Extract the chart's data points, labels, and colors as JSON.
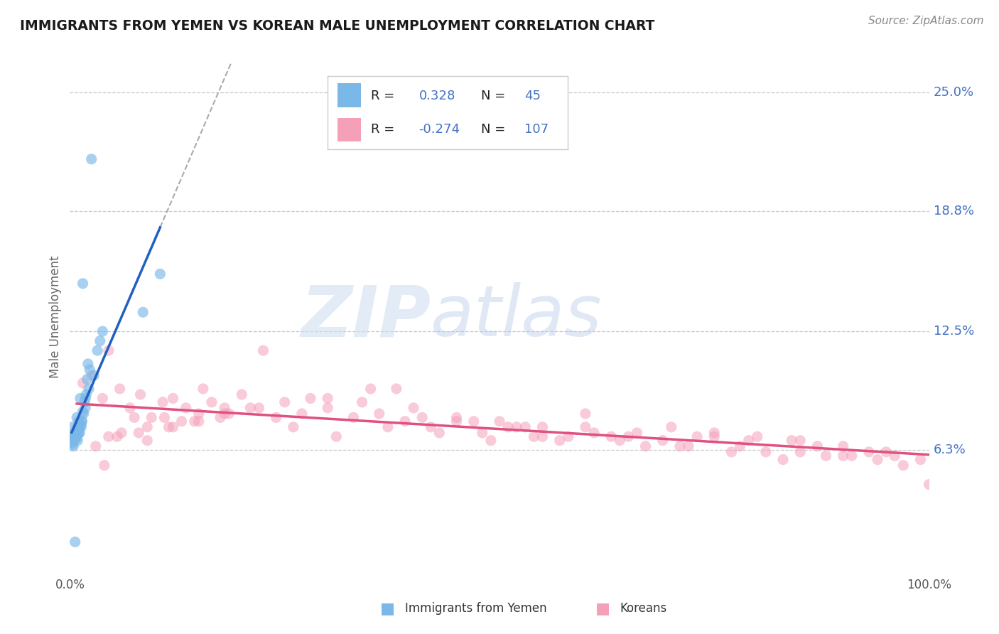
{
  "title": "IMMIGRANTS FROM YEMEN VS KOREAN MALE UNEMPLOYMENT CORRELATION CHART",
  "source": "Source: ZipAtlas.com",
  "ylabel": "Male Unemployment",
  "ytick_labels": [
    "6.3%",
    "12.5%",
    "18.8%",
    "25.0%"
  ],
  "ytick_values": [
    6.3,
    12.5,
    18.8,
    25.0
  ],
  "xmin": 0.0,
  "xmax": 100.0,
  "ymin": 0.0,
  "ymax": 26.5,
  "color_blue": "#7ab8e8",
  "color_pink": "#f5a0b8",
  "color_blue_line": "#2060c0",
  "color_pink_line": "#e05080",
  "color_blue_text": "#4472c4",
  "color_gray_text": "#888888",
  "watermark_zip": "ZIP",
  "watermark_atlas": "atlas",
  "blue_x": [
    1.5,
    2.5,
    8.5,
    0.3,
    0.5,
    0.8,
    1.0,
    1.2,
    1.8,
    2.0,
    0.6,
    0.9,
    1.1,
    1.3,
    1.6,
    0.4,
    1.4,
    0.7,
    2.2,
    0.5,
    1.7,
    2.8,
    3.2,
    0.2,
    1.9,
    0.3,
    3.5,
    0.6,
    0.4,
    0.8,
    1.0,
    1.5,
    0.9,
    0.7,
    1.3,
    2.1,
    0.6,
    1.8,
    0.5,
    1.0,
    3.8,
    10.5,
    1.1,
    1.4,
    2.3
  ],
  "blue_y": [
    15.0,
    21.5,
    13.5,
    7.5,
    7.2,
    8.0,
    7.8,
    9.0,
    8.5,
    10.0,
    7.0,
    6.8,
    7.2,
    7.5,
    8.2,
    6.5,
    7.8,
    6.9,
    9.5,
    7.1,
    8.8,
    10.2,
    11.5,
    6.7,
    9.2,
    6.6,
    12.0,
    7.0,
    6.8,
    7.3,
    7.5,
    8.3,
    7.1,
    6.9,
    7.6,
    10.8,
    1.5,
    9.0,
    7.0,
    7.4,
    12.5,
    15.5,
    7.2,
    7.8,
    10.5
  ],
  "pink_x": [
    0.8,
    1.5,
    2.5,
    3.8,
    4.5,
    5.8,
    7.0,
    8.2,
    9.5,
    10.8,
    12.0,
    13.5,
    15.0,
    16.5,
    18.0,
    5.5,
    7.5,
    9.0,
    11.0,
    13.0,
    15.5,
    18.5,
    21.0,
    24.0,
    27.0,
    30.0,
    33.0,
    36.0,
    39.0,
    42.0,
    45.0,
    48.0,
    51.0,
    54.0,
    57.0,
    60.0,
    63.0,
    66.0,
    69.0,
    72.0,
    75.0,
    78.0,
    81.0,
    84.0,
    87.0,
    90.0,
    93.0,
    96.0,
    99.0,
    20.0,
    25.0,
    30.0,
    35.0,
    40.0,
    45.0,
    50.0,
    55.0,
    60.0,
    65.0,
    70.0,
    75.0,
    80.0,
    85.0,
    90.0,
    95.0,
    3.0,
    6.0,
    9.0,
    12.0,
    15.0,
    18.0,
    22.0,
    26.0,
    31.0,
    37.0,
    43.0,
    49.0,
    55.0,
    61.0,
    67.0,
    73.0,
    79.0,
    85.0,
    91.0,
    97.0,
    28.0,
    34.0,
    41.0,
    47.0,
    53.0,
    58.0,
    64.0,
    71.0,
    77.0,
    83.0,
    88.0,
    94.0,
    100.0,
    4.5,
    8.0,
    11.5,
    14.5,
    17.5,
    4.0,
    22.5,
    38.0,
    52.0
  ],
  "pink_y": [
    7.5,
    9.8,
    10.2,
    9.0,
    11.5,
    9.5,
    8.5,
    9.2,
    8.0,
    8.8,
    9.0,
    8.5,
    8.2,
    8.8,
    8.5,
    7.0,
    8.0,
    7.5,
    8.0,
    7.8,
    9.5,
    8.2,
    8.5,
    8.0,
    8.2,
    8.5,
    8.0,
    8.2,
    7.8,
    7.5,
    7.8,
    7.2,
    7.5,
    7.0,
    6.8,
    7.5,
    7.0,
    7.2,
    6.8,
    6.5,
    7.0,
    6.5,
    6.2,
    6.8,
    6.5,
    6.0,
    6.2,
    6.0,
    5.8,
    9.2,
    8.8,
    9.0,
    9.5,
    8.5,
    8.0,
    7.8,
    7.5,
    8.2,
    7.0,
    7.5,
    7.2,
    7.0,
    6.8,
    6.5,
    6.2,
    6.5,
    7.2,
    6.8,
    7.5,
    7.8,
    8.2,
    8.5,
    7.5,
    7.0,
    7.5,
    7.2,
    6.8,
    7.0,
    7.2,
    6.5,
    7.0,
    6.8,
    6.2,
    6.0,
    5.5,
    9.0,
    8.8,
    8.0,
    7.8,
    7.5,
    7.0,
    6.8,
    6.5,
    6.2,
    5.8,
    6.0,
    5.8,
    4.5,
    7.0,
    7.2,
    7.5,
    7.8,
    8.0,
    5.5,
    11.5,
    9.5,
    7.5
  ]
}
